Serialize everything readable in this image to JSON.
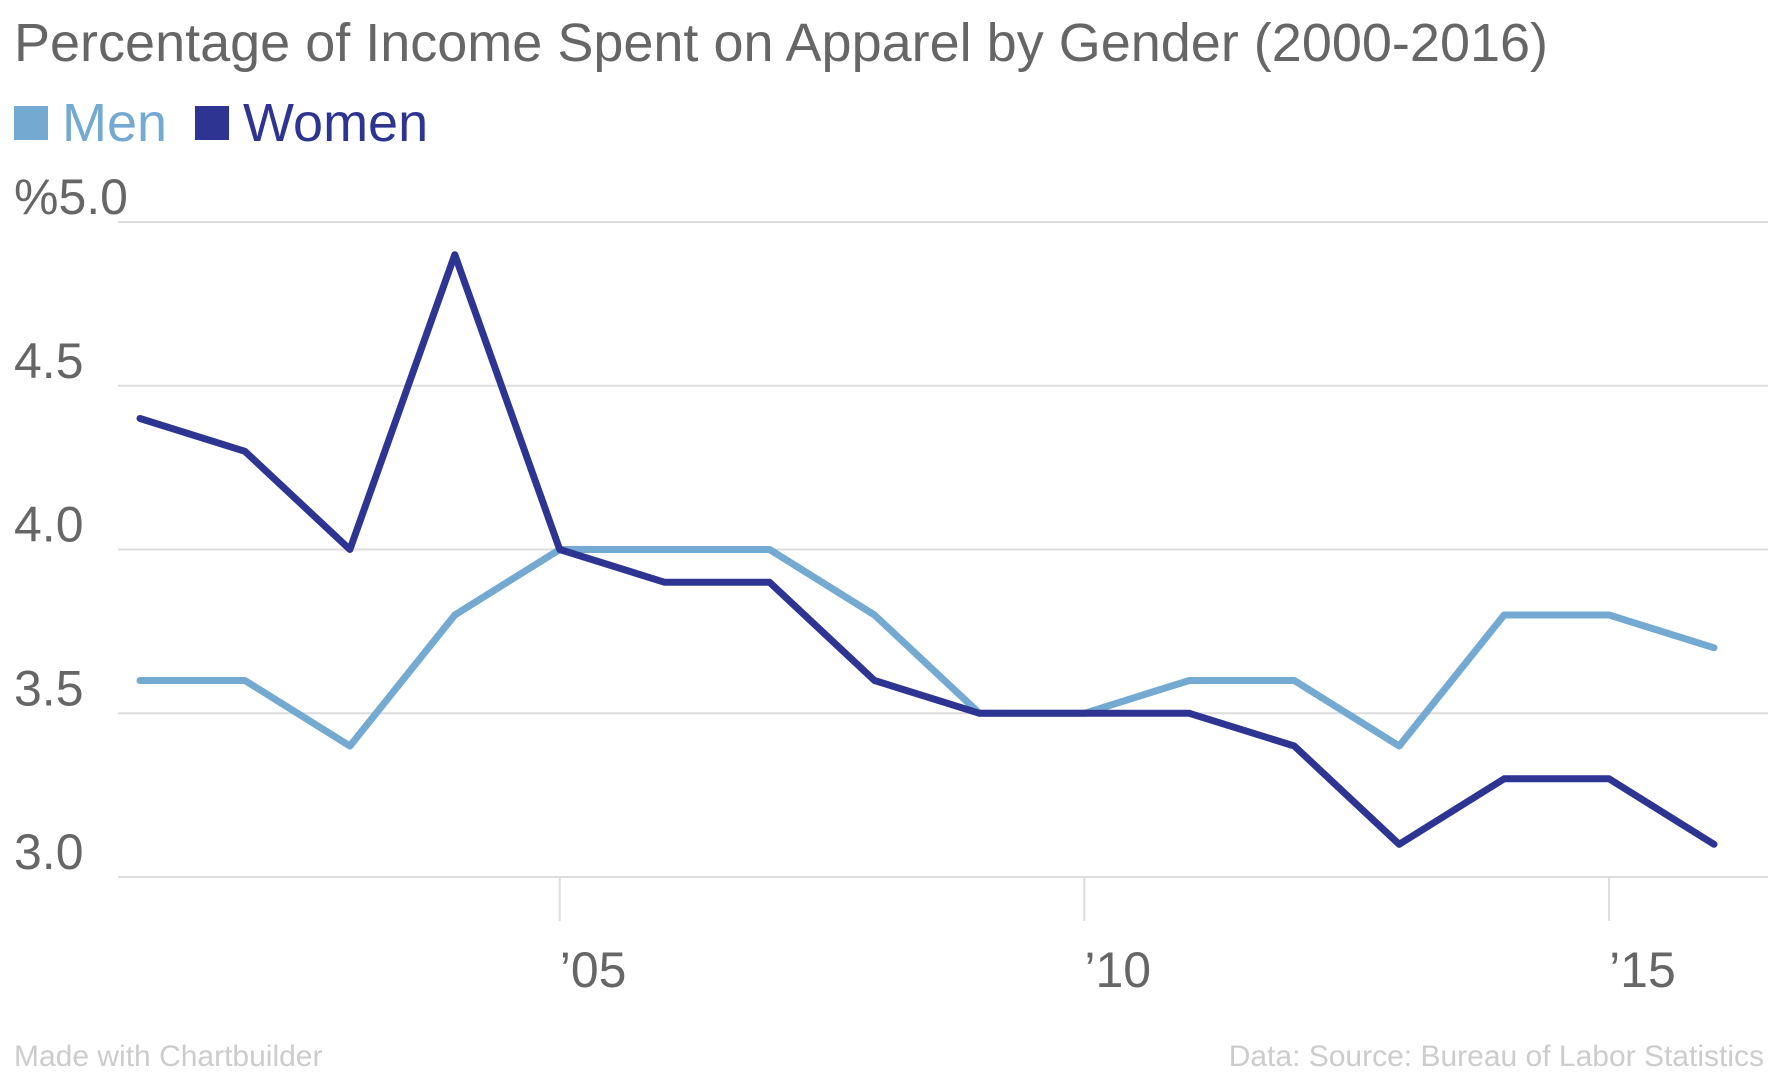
{
  "chart_data": {
    "type": "line",
    "title": "Percentage of Income Spent on Apparel by Gender (2000-2016)",
    "x": [
      2001,
      2002,
      2003,
      2004,
      2005,
      2006,
      2007,
      2008,
      2009,
      2010,
      2011,
      2012,
      2013,
      2014,
      2015,
      2016
    ],
    "series": [
      {
        "name": "Men",
        "color": "#74aad2",
        "values": [
          3.6,
          3.6,
          3.4,
          3.8,
          4.0,
          4.0,
          4.0,
          3.8,
          3.5,
          3.5,
          3.6,
          3.6,
          3.4,
          3.8,
          3.8,
          3.7
        ]
      },
      {
        "name": "Women",
        "color": "#2e3492",
        "values": [
          4.4,
          4.3,
          4.0,
          4.9,
          4.0,
          3.9,
          3.9,
          3.6,
          3.5,
          3.5,
          3.5,
          3.4,
          3.1,
          3.3,
          3.3,
          3.1
        ]
      }
    ],
    "ylim": [
      3.0,
      5.0
    ],
    "xlim": [
      2000,
      2016.3
    ],
    "y_ticks": [
      {
        "value": 5.0,
        "label": "%5.0"
      },
      {
        "value": 4.5,
        "label": "4.5"
      },
      {
        "value": 4.0,
        "label": "4.0"
      },
      {
        "value": 3.5,
        "label": "3.5"
      },
      {
        "value": 3.0,
        "label": "3.0"
      }
    ],
    "x_ticks": [
      {
        "value": 2005,
        "label": "’05"
      },
      {
        "value": 2010,
        "label": "’10"
      },
      {
        "value": 2015,
        "label": "’15"
      }
    ],
    "grid": true,
    "legend_position": "top-left"
  },
  "footer": {
    "credit": "Made with Chartbuilder",
    "source": "Data: Source: Bureau of Labor Statistics"
  }
}
